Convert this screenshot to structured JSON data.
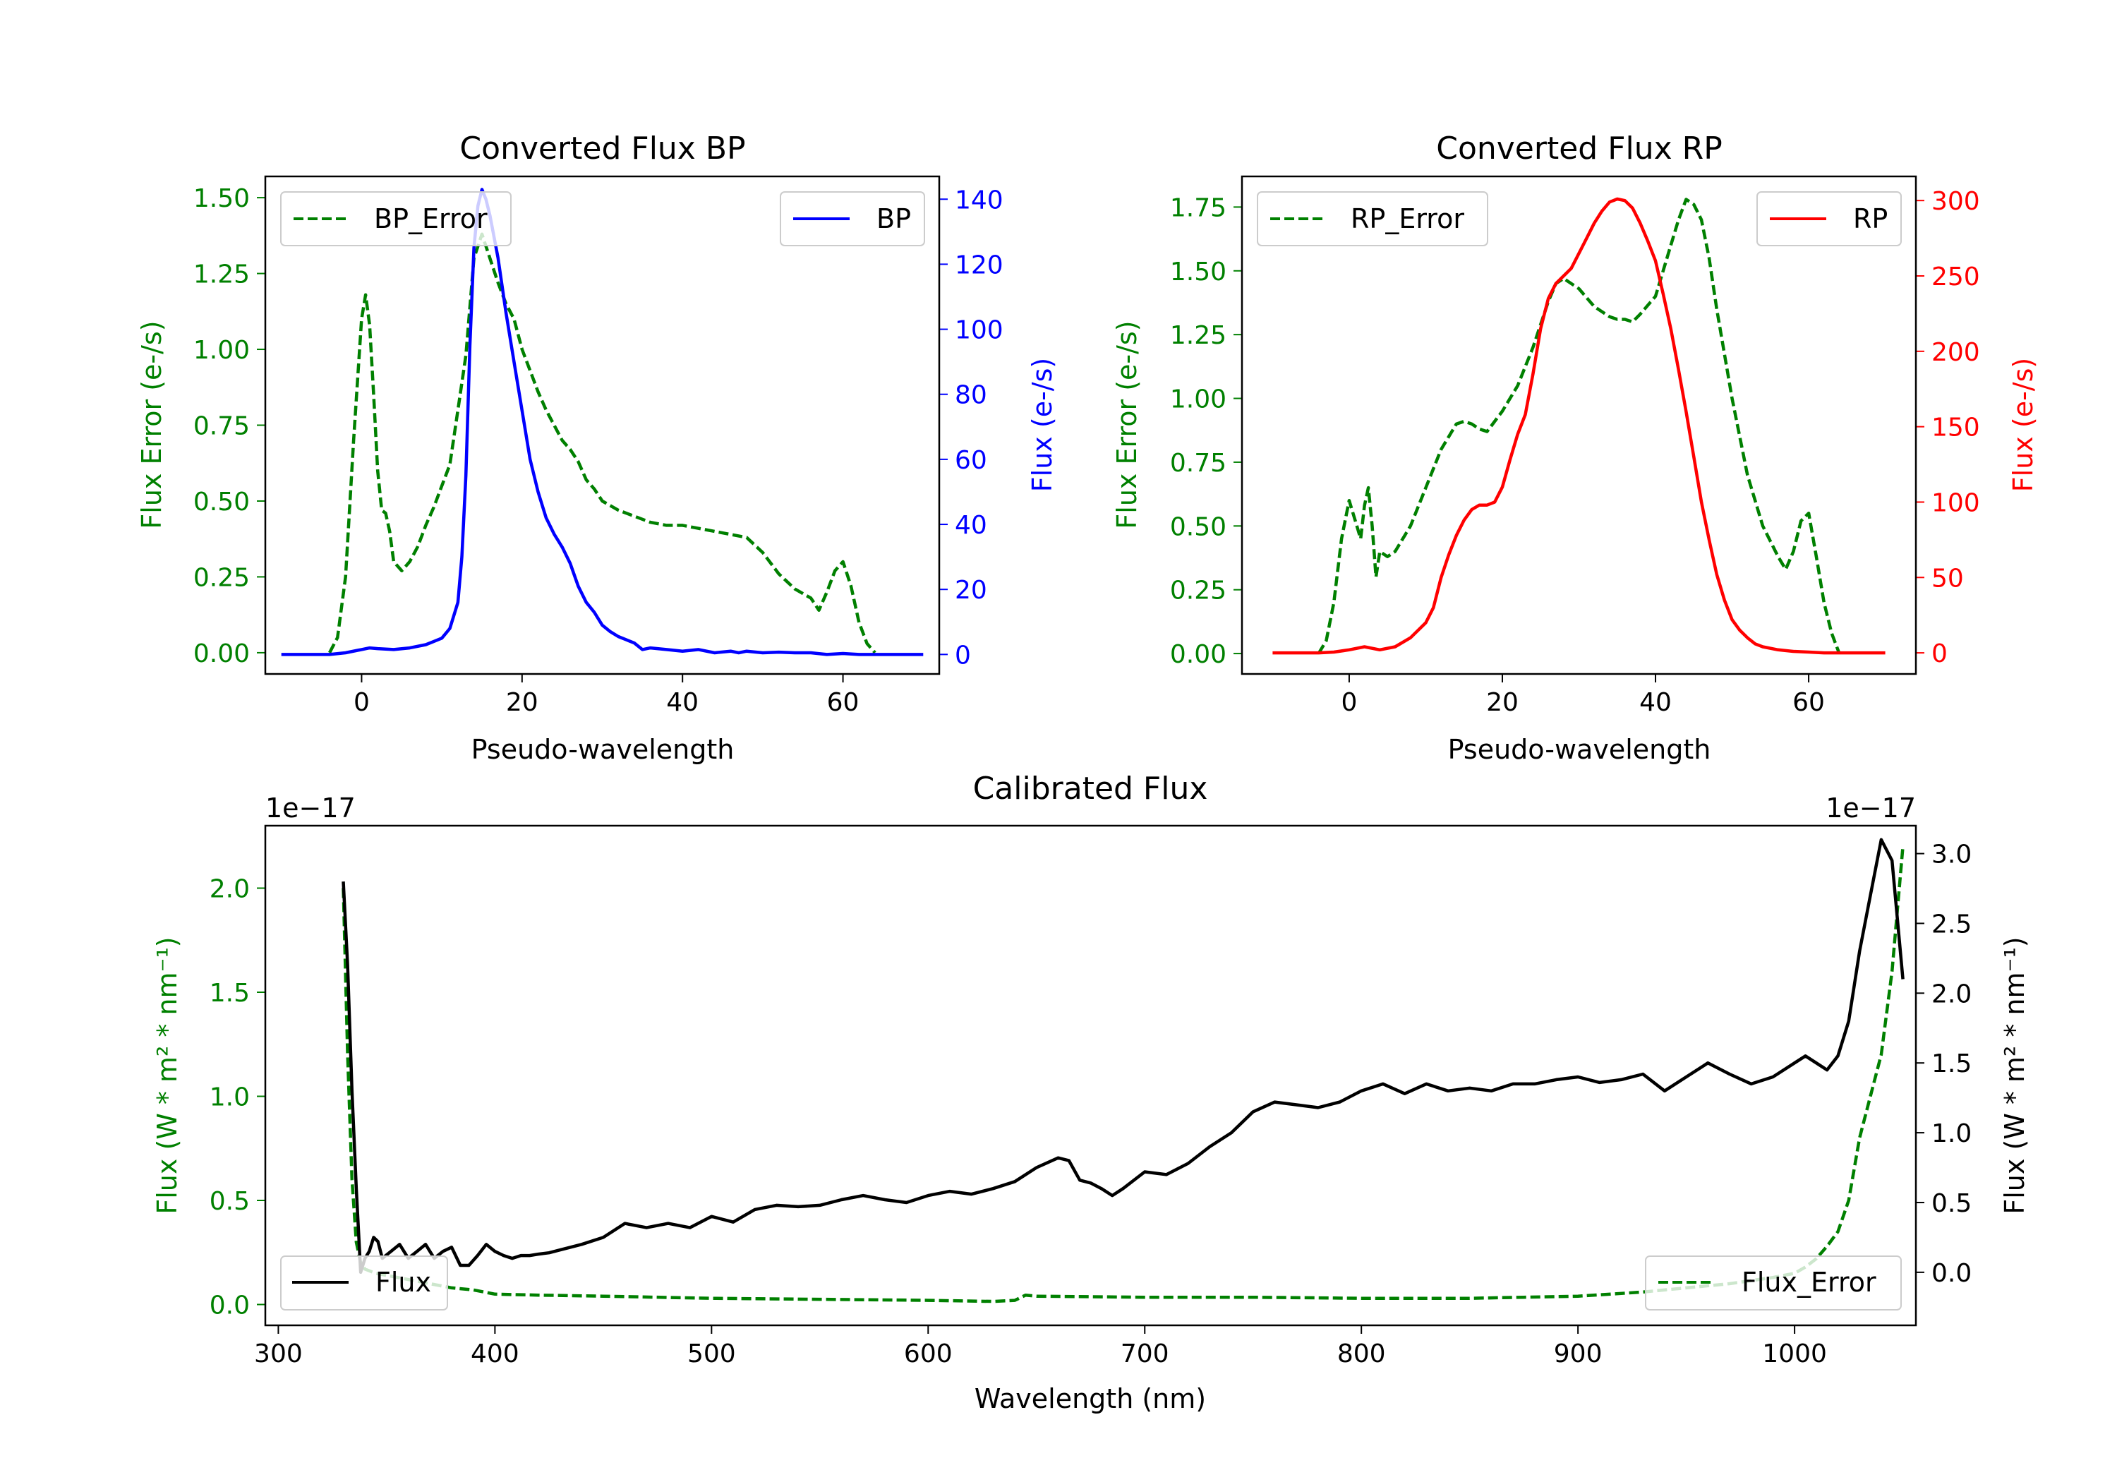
{
  "figure": {
    "background": "#ffffff",
    "colors": {
      "green": "#008000",
      "blue": "#0000ff",
      "red": "#ff0000",
      "black": "#000000"
    }
  },
  "chart_data": [
    {
      "id": "bp",
      "type": "line",
      "title": "Converted Flux BP",
      "xlabel": "Pseudo-wavelength",
      "ylabel_left": "Flux Error (e-/s)",
      "ylabel_right": "Flux (e-/s)",
      "xlim": [
        -12,
        72
      ],
      "ylim_left": [
        -0.07,
        1.57
      ],
      "ylim_right": [
        -6,
        147
      ],
      "xticks": [
        0,
        20,
        40,
        60
      ],
      "yticks_left": [
        0.0,
        0.25,
        0.5,
        0.75,
        1.0,
        1.25,
        1.5
      ],
      "yticks_left_labels": [
        "0.00",
        "0.25",
        "0.50",
        "0.75",
        "1.00",
        "1.25",
        "1.50"
      ],
      "yticks_right": [
        0,
        20,
        40,
        60,
        80,
        100,
        120,
        140
      ],
      "yticks_right_labels": [
        "0",
        "20",
        "40",
        "60",
        "80",
        "100",
        "120",
        "140"
      ],
      "left_axis_color": "#008000",
      "right_axis_color": "#0000ff",
      "legend_left": {
        "label": "BP_Error",
        "position": "upper left"
      },
      "legend_right": {
        "label": "BP",
        "position": "upper right"
      },
      "series": [
        {
          "name": "BP_Error",
          "axis": "left",
          "color": "#008000",
          "style": "dashed",
          "x": [
            -4,
            -3,
            -2,
            -1,
            0,
            0.5,
            1,
            1.5,
            2,
            2.5,
            3,
            3.5,
            4,
            5,
            6,
            7,
            8,
            9,
            10,
            11,
            12,
            13,
            14,
            15,
            16,
            17,
            18,
            19,
            20,
            21,
            22,
            23,
            24,
            25,
            26,
            27,
            28,
            29,
            30,
            32,
            34,
            36,
            38,
            40,
            42,
            44,
            46,
            48,
            50,
            52,
            54,
            56,
            57,
            58,
            59,
            60,
            61,
            62,
            63,
            64
          ],
          "y": [
            0.0,
            0.05,
            0.25,
            0.7,
            1.1,
            1.18,
            1.08,
            0.85,
            0.6,
            0.47,
            0.46,
            0.4,
            0.3,
            0.27,
            0.3,
            0.35,
            0.42,
            0.48,
            0.55,
            0.62,
            0.8,
            0.98,
            1.3,
            1.38,
            1.3,
            1.22,
            1.15,
            1.1,
            1.0,
            0.93,
            0.86,
            0.8,
            0.75,
            0.7,
            0.67,
            0.63,
            0.57,
            0.54,
            0.5,
            0.47,
            0.45,
            0.43,
            0.42,
            0.42,
            0.41,
            0.4,
            0.39,
            0.38,
            0.33,
            0.26,
            0.21,
            0.18,
            0.14,
            0.2,
            0.27,
            0.3,
            0.22,
            0.1,
            0.03,
            0.0
          ]
        },
        {
          "name": "BP",
          "axis": "right",
          "color": "#0000ff",
          "style": "solid",
          "x": [
            -10,
            -6,
            -4,
            -2,
            0,
            1,
            2,
            4,
            6,
            8,
            9,
            10,
            11,
            12,
            12.5,
            13,
            13.5,
            14,
            14.5,
            15,
            15.5,
            16,
            17,
            18,
            19,
            20,
            21,
            22,
            23,
            24,
            25,
            26,
            27,
            28,
            29,
            30,
            31,
            32,
            33,
            34,
            35,
            36,
            38,
            40,
            42,
            44,
            46,
            47,
            48,
            50,
            52,
            54,
            56,
            58,
            60,
            62,
            64,
            66,
            68,
            70
          ],
          "y": [
            0,
            0,
            0,
            0.5,
            1.5,
            2,
            1.8,
            1.5,
            2,
            3,
            4,
            5,
            8,
            16,
            30,
            55,
            95,
            125,
            138,
            143,
            140,
            135,
            122,
            105,
            90,
            75,
            60,
            50,
            42,
            37,
            33,
            28,
            21,
            16,
            13,
            9,
            7,
            5.5,
            4.5,
            3.5,
            1.5,
            2,
            1.5,
            1,
            1.5,
            0.5,
            1,
            0.5,
            1,
            0.5,
            0.7,
            0.5,
            0.5,
            0,
            0.3,
            0,
            0,
            0,
            0,
            0
          ]
        }
      ]
    },
    {
      "id": "rp",
      "type": "line",
      "title": "Converted Flux RP",
      "xlabel": "Pseudo-wavelength",
      "ylabel_left": "Flux Error (e-/s)",
      "ylabel_right": "Flux (e-/s)",
      "xlim": [
        -14,
        74
      ],
      "ylim_left": [
        -0.08,
        1.87
      ],
      "ylim_right": [
        -14,
        316
      ],
      "xticks": [
        0,
        20,
        40,
        60
      ],
      "yticks_left": [
        0.0,
        0.25,
        0.5,
        0.75,
        1.0,
        1.25,
        1.5,
        1.75
      ],
      "yticks_left_labels": [
        "0.00",
        "0.25",
        "0.50",
        "0.75",
        "1.00",
        "1.25",
        "1.50",
        "1.75"
      ],
      "yticks_right": [
        0,
        50,
        100,
        150,
        200,
        250,
        300
      ],
      "yticks_right_labels": [
        "0",
        "50",
        "100",
        "150",
        "200",
        "250",
        "300"
      ],
      "left_axis_color": "#008000",
      "right_axis_color": "#ff0000",
      "legend_left": {
        "label": "RP_Error",
        "position": "upper left"
      },
      "legend_right": {
        "label": "RP",
        "position": "upper right"
      },
      "series": [
        {
          "name": "RP_Error",
          "axis": "left",
          "color": "#008000",
          "style": "dashed",
          "x": [
            -4,
            -3,
            -2,
            -1,
            0,
            1,
            1.5,
            2,
            2.5,
            3,
            3.5,
            4,
            5,
            6,
            8,
            10,
            12,
            14,
            15,
            16,
            17,
            18,
            20,
            22,
            24,
            26,
            27,
            28,
            30,
            32,
            34,
            35,
            36,
            37,
            38,
            40,
            42,
            43,
            44,
            45,
            46,
            47,
            48,
            50,
            52,
            54,
            56,
            57,
            58,
            59,
            60,
            61,
            62,
            63,
            64
          ],
          "y": [
            0.0,
            0.05,
            0.2,
            0.45,
            0.6,
            0.5,
            0.45,
            0.58,
            0.65,
            0.5,
            0.3,
            0.4,
            0.38,
            0.4,
            0.5,
            0.65,
            0.8,
            0.9,
            0.91,
            0.9,
            0.88,
            0.87,
            0.95,
            1.05,
            1.2,
            1.38,
            1.45,
            1.47,
            1.43,
            1.36,
            1.32,
            1.31,
            1.31,
            1.3,
            1.33,
            1.4,
            1.6,
            1.7,
            1.78,
            1.76,
            1.7,
            1.55,
            1.35,
            1.0,
            0.7,
            0.5,
            0.38,
            0.33,
            0.4,
            0.52,
            0.55,
            0.38,
            0.2,
            0.08,
            0.0
          ]
        },
        {
          "name": "RP",
          "axis": "right",
          "color": "#ff0000",
          "style": "solid",
          "x": [
            -10,
            -6,
            -4,
            -2,
            0,
            2,
            4,
            6,
            8,
            10,
            11,
            12,
            13,
            14,
            15,
            16,
            17,
            18,
            19,
            20,
            21,
            22,
            23,
            24,
            25,
            26,
            27,
            28,
            29,
            30,
            31,
            32,
            33,
            34,
            35,
            36,
            37,
            38,
            39,
            40,
            41,
            42,
            43,
            44,
            45,
            46,
            47,
            48,
            49,
            50,
            51,
            52,
            53,
            54,
            56,
            58,
            60,
            62,
            66,
            70
          ],
          "y": [
            0,
            0,
            0,
            0.5,
            2,
            4,
            2,
            4,
            10,
            20,
            30,
            50,
            65,
            78,
            88,
            95,
            98,
            98,
            100,
            110,
            128,
            145,
            158,
            185,
            215,
            235,
            245,
            250,
            255,
            265,
            275,
            285,
            293,
            299,
            301,
            300,
            295,
            285,
            273,
            260,
            238,
            215,
            188,
            160,
            130,
            100,
            75,
            52,
            35,
            22,
            15,
            10,
            6,
            4,
            2,
            1,
            0.5,
            0,
            0,
            0
          ]
        }
      ]
    },
    {
      "id": "calibrated",
      "type": "line",
      "title": "Calibrated Flux",
      "xlabel": "Wavelength (nm)",
      "ylabel_left": "Flux (W * m² * nm⁻¹)",
      "ylabel_right": "Flux (W * m² * nm⁻¹)",
      "offset_left": "1e−17",
      "offset_right": "1e−17",
      "xlim": [
        294,
        1056
      ],
      "ylim_left": [
        -0.1,
        2.3
      ],
      "ylim_right": [
        -0.38,
        3.2
      ],
      "xticks": [
        300,
        400,
        500,
        600,
        700,
        800,
        900,
        1000
      ],
      "yticks_left": [
        0.0,
        0.5,
        1.0,
        1.5,
        2.0
      ],
      "yticks_left_labels": [
        "0.0",
        "0.5",
        "1.0",
        "1.5",
        "2.0"
      ],
      "yticks_right": [
        0.0,
        0.5,
        1.0,
        1.5,
        2.0,
        2.5,
        3.0
      ],
      "yticks_right_labels": [
        "0.0",
        "0.5",
        "1.0",
        "1.5",
        "2.0",
        "2.5",
        "3.0"
      ],
      "left_axis_color": "#008000",
      "right_axis_color": "#000000",
      "legend_left": {
        "label": "Flux",
        "position": "lower left"
      },
      "legend_right": {
        "label": "Flux_Error",
        "position": "lower right"
      },
      "series": [
        {
          "name": "Flux_Error",
          "axis": "left",
          "color": "#008000",
          "style": "dashed",
          "x": [
            330,
            332,
            334,
            336,
            338,
            340,
            345,
            350,
            360,
            370,
            380,
            390,
            400,
            420,
            450,
            500,
            550,
            600,
            630,
            640,
            645,
            650,
            700,
            750,
            800,
            850,
            900,
            930,
            950,
            970,
            990,
            1000,
            1005,
            1010,
            1015,
            1020,
            1025,
            1030,
            1035,
            1040,
            1045,
            1050
          ],
          "y": [
            2.0,
            1.2,
            0.6,
            0.3,
            0.2,
            0.17,
            0.15,
            0.14,
            0.12,
            0.1,
            0.08,
            0.07,
            0.05,
            0.045,
            0.04,
            0.03,
            0.025,
            0.02,
            0.015,
            0.02,
            0.045,
            0.04,
            0.035,
            0.035,
            0.03,
            0.03,
            0.04,
            0.06,
            0.08,
            0.1,
            0.13,
            0.15,
            0.18,
            0.22,
            0.28,
            0.35,
            0.5,
            0.8,
            1.0,
            1.2,
            1.6,
            2.2
          ]
        },
        {
          "name": "Flux",
          "axis": "right",
          "color": "#000000",
          "style": "solid",
          "x": [
            330,
            332,
            334,
            336,
            338,
            340,
            342,
            344,
            346,
            348,
            352,
            356,
            360,
            364,
            368,
            372,
            376,
            380,
            384,
            388,
            392,
            396,
            400,
            404,
            408,
            412,
            416,
            420,
            425,
            430,
            440,
            450,
            460,
            470,
            480,
            490,
            500,
            510,
            520,
            530,
            540,
            550,
            560,
            570,
            580,
            590,
            600,
            610,
            620,
            630,
            640,
            650,
            660,
            665,
            670,
            675,
            680,
            685,
            690,
            700,
            710,
            720,
            730,
            740,
            750,
            760,
            770,
            780,
            790,
            800,
            810,
            820,
            830,
            840,
            850,
            860,
            870,
            880,
            890,
            900,
            910,
            920,
            930,
            940,
            950,
            960,
            970,
            980,
            990,
            1000,
            1005,
            1010,
            1015,
            1020,
            1025,
            1030,
            1035,
            1040,
            1045,
            1050
          ],
          "y": [
            2.8,
            2.2,
            1.3,
            0.6,
            0.0,
            0.1,
            0.15,
            0.25,
            0.22,
            0.1,
            0.15,
            0.2,
            0.1,
            0.15,
            0.2,
            0.1,
            0.15,
            0.18,
            0.05,
            0.05,
            0.12,
            0.2,
            0.15,
            0.12,
            0.1,
            0.12,
            0.12,
            0.13,
            0.14,
            0.16,
            0.2,
            0.25,
            0.35,
            0.32,
            0.35,
            0.32,
            0.4,
            0.36,
            0.45,
            0.48,
            0.47,
            0.48,
            0.52,
            0.55,
            0.52,
            0.5,
            0.55,
            0.58,
            0.56,
            0.6,
            0.65,
            0.75,
            0.82,
            0.8,
            0.66,
            0.64,
            0.6,
            0.55,
            0.6,
            0.72,
            0.7,
            0.78,
            0.9,
            1.0,
            1.15,
            1.22,
            1.2,
            1.18,
            1.22,
            1.3,
            1.35,
            1.28,
            1.35,
            1.3,
            1.32,
            1.3,
            1.35,
            1.35,
            1.38,
            1.4,
            1.36,
            1.38,
            1.42,
            1.3,
            1.4,
            1.5,
            1.42,
            1.35,
            1.4,
            1.5,
            1.55,
            1.5,
            1.45,
            1.55,
            1.8,
            2.3,
            2.7,
            3.1,
            2.95,
            2.1
          ]
        }
      ]
    }
  ]
}
